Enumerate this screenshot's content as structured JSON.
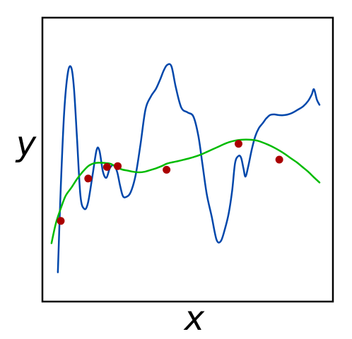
{
  "chart_data": {
    "type": "line",
    "xlabel": "x",
    "ylabel": "y",
    "x_ticks": [],
    "y_ticks": [],
    "grid": false,
    "legend": "none",
    "xlim": [
      0,
      1
    ],
    "ylim": [
      0,
      1
    ],
    "series": [
      {
        "color": "#0047ab",
        "style": "line",
        "x": [
          0.051,
          0.061,
          0.073,
          0.086,
          0.098,
          0.107,
          0.117,
          0.129,
          0.142,
          0.155,
          0.171,
          0.185,
          0.195,
          0.207,
          0.219,
          0.231,
          0.244,
          0.256,
          0.266,
          0.276,
          0.288,
          0.303,
          0.32,
          0.337,
          0.354,
          0.373,
          0.39,
          0.405,
          0.417,
          0.429,
          0.444,
          0.459,
          0.478,
          0.5,
          0.52,
          0.537,
          0.551,
          0.566,
          0.583,
          0.6,
          0.615,
          0.629,
          0.642,
          0.654,
          0.664,
          0.676,
          0.685,
          0.693,
          0.7,
          0.71,
          0.722,
          0.734,
          0.746,
          0.759,
          0.766,
          0.771,
          0.776,
          0.781,
          0.788,
          0.8,
          0.812,
          0.827,
          0.844,
          0.861,
          0.88,
          0.9,
          0.917,
          0.929,
          0.937,
          0.947,
          0.956
        ],
        "y": [
          0.101,
          0.4,
          0.67,
          0.81,
          0.824,
          0.749,
          0.58,
          0.373,
          0.326,
          0.346,
          0.445,
          0.534,
          0.531,
          0.457,
          0.436,
          0.47,
          0.48,
          0.457,
          0.409,
          0.371,
          0.368,
          0.385,
          0.445,
          0.555,
          0.677,
          0.724,
          0.75,
          0.784,
          0.815,
          0.835,
          0.83,
          0.756,
          0.684,
          0.667,
          0.652,
          0.584,
          0.485,
          0.378,
          0.299,
          0.216,
          0.212,
          0.255,
          0.31,
          0.391,
          0.488,
          0.513,
          0.506,
          0.469,
          0.44,
          0.478,
          0.537,
          0.583,
          0.611,
          0.628,
          0.638,
          0.645,
          0.65,
          0.655,
          0.659,
          0.66,
          0.658,
          0.657,
          0.659,
          0.665,
          0.676,
          0.689,
          0.708,
          0.73,
          0.749,
          0.712,
          0.694
        ]
      },
      {
        "color": "#00bb00",
        "style": "line",
        "x": [
          0.029,
          0.044,
          0.061,
          0.078,
          0.098,
          0.117,
          0.137,
          0.156,
          0.176,
          0.195,
          0.214,
          0.234,
          0.254,
          0.273,
          0.293,
          0.312,
          0.332,
          0.351,
          0.371,
          0.39,
          0.41,
          0.429,
          0.449,
          0.468,
          0.488,
          0.507,
          0.527,
          0.546,
          0.566,
          0.585,
          0.605,
          0.624,
          0.644,
          0.663,
          0.683,
          0.702,
          0.722,
          0.741,
          0.761,
          0.78,
          0.8,
          0.819,
          0.839,
          0.858,
          0.878,
          0.897,
          0.917,
          0.936,
          0.956
        ],
        "y": [
          0.204,
          0.274,
          0.327,
          0.372,
          0.401,
          0.431,
          0.457,
          0.477,
          0.487,
          0.489,
          0.488,
          0.485,
          0.473,
          0.465,
          0.461,
          0.457,
          0.455,
          0.457,
          0.463,
          0.469,
          0.477,
          0.486,
          0.491,
          0.495,
          0.5,
          0.505,
          0.511,
          0.518,
          0.527,
          0.536,
          0.545,
          0.554,
          0.562,
          0.567,
          0.57,
          0.571,
          0.57,
          0.567,
          0.56,
          0.552,
          0.542,
          0.531,
          0.518,
          0.504,
          0.49,
          0.474,
          0.457,
          0.438,
          0.419
        ]
      },
      {
        "color": "#aa0000",
        "style": "points",
        "x": [
          0.061,
          0.156,
          0.221,
          0.258,
          0.427,
          0.676,
          0.817
        ],
        "y": [
          0.283,
          0.433,
          0.474,
          0.477,
          0.464,
          0.556,
          0.5
        ]
      }
    ]
  }
}
